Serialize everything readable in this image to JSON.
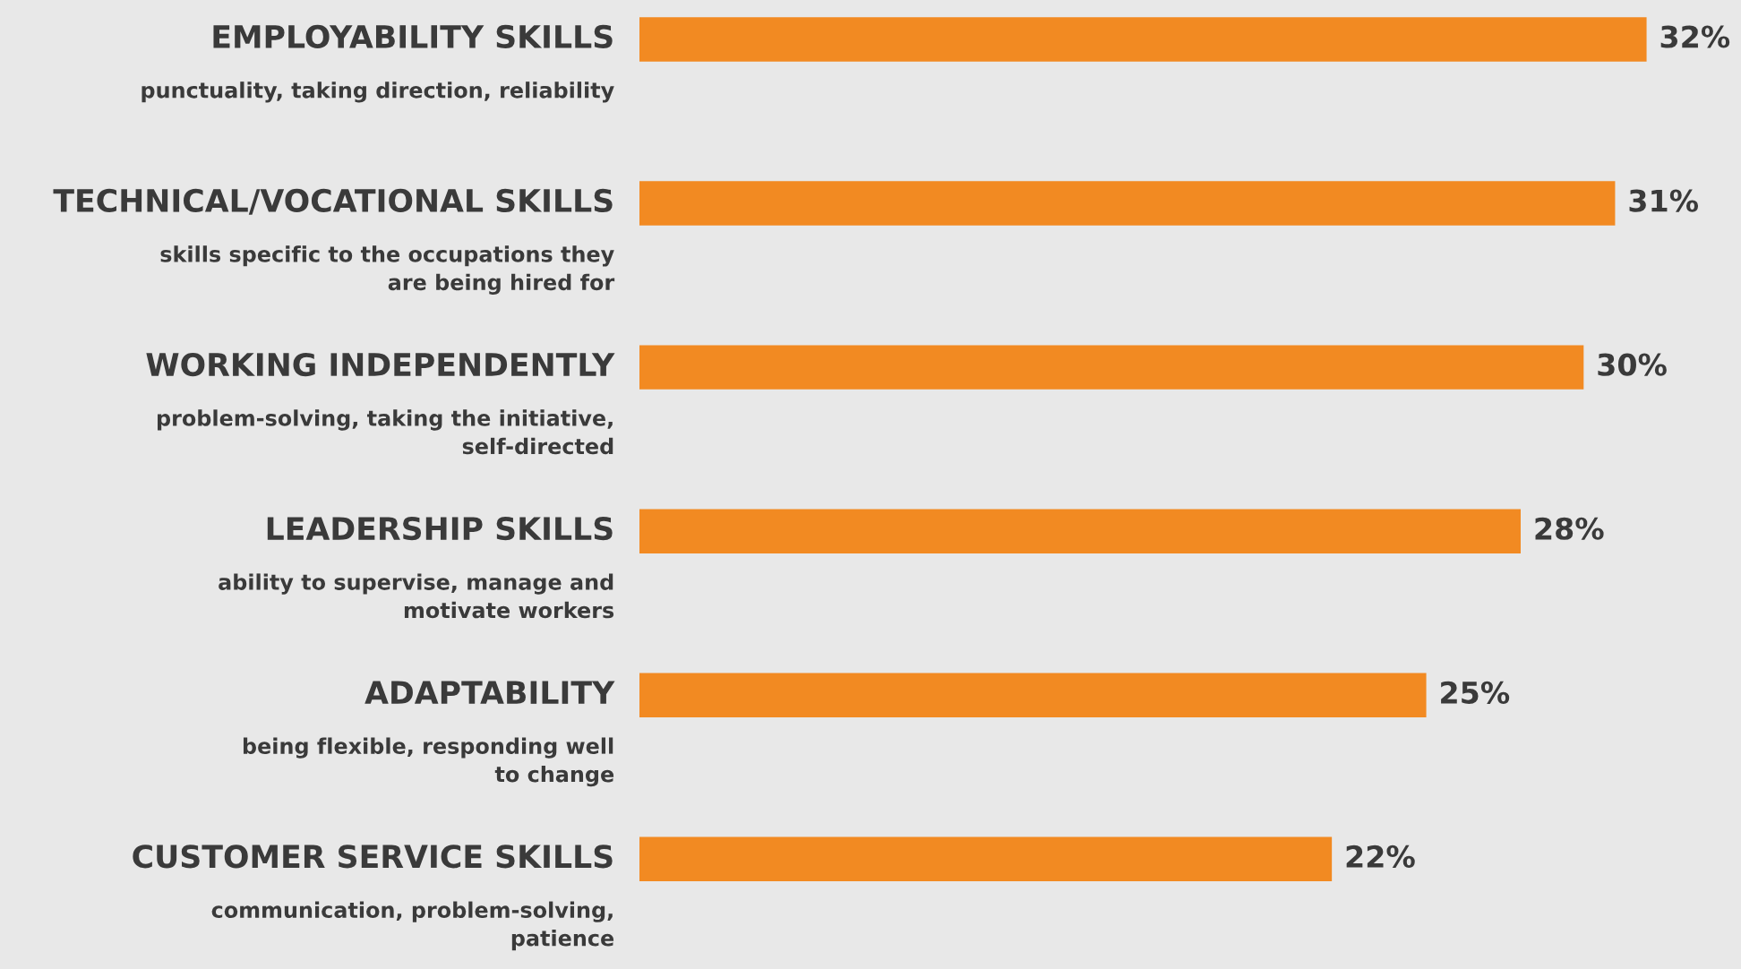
{
  "chart_data": {
    "type": "bar",
    "orientation": "horizontal",
    "color": "#f28a22",
    "categories": [
      "EMPLOYABILITY SKILLS\npunctuality, taking direction, reliability",
      "TECHNICAL/VOCATIONAL SKILLS\nskills specific to the occupations they\nare being hired for",
      "WORKING INDEPENDENTLY\nproblem-solving, taking the initiative,\nself-directed",
      "LEADERSHIP SKILLS\nability to supervise, manage and\nmotivate workers",
      "ADAPTABILITY\nbeing flexible, responding well\nto change",
      "CUSTOMER SERVICE SKILLS\ncommunication, problem-solving,\npatience"
    ],
    "values": [
      32,
      31,
      30,
      28,
      25,
      22
    ],
    "value_labels": [
      "32%",
      "31%",
      "30%",
      "28%",
      "25%",
      "22%"
    ]
  }
}
